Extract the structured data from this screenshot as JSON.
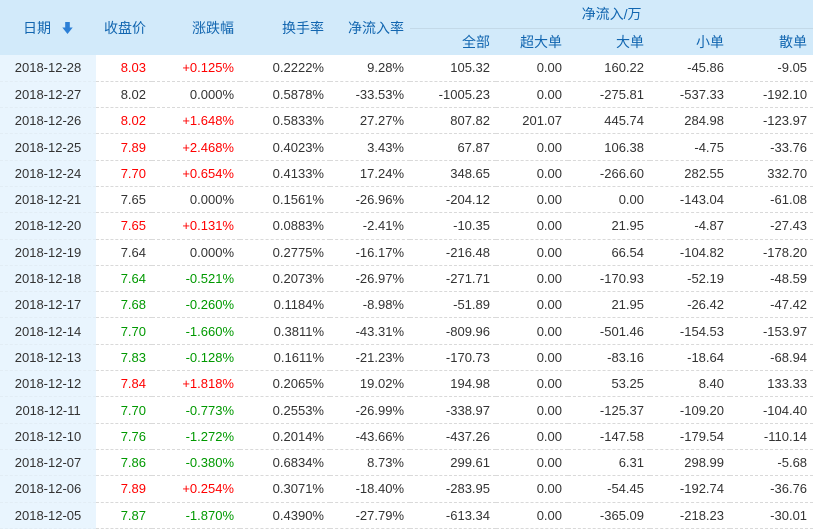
{
  "table": {
    "group_header": "净流入/万",
    "columns": [
      {
        "key": "date",
        "label": "日期"
      },
      {
        "key": "close",
        "label": "收盘价"
      },
      {
        "key": "change",
        "label": "涨跌幅"
      },
      {
        "key": "turnover",
        "label": "换手率"
      },
      {
        "key": "inflow_rate",
        "label": "净流入率"
      },
      {
        "key": "all",
        "label": "全部"
      },
      {
        "key": "super_large",
        "label": "超大单"
      },
      {
        "key": "large",
        "label": "大单"
      },
      {
        "key": "small",
        "label": "小单"
      },
      {
        "key": "scattered",
        "label": "散单"
      }
    ],
    "sort": {
      "column": "日期",
      "direction": "desc",
      "icon": "arrow-down"
    },
    "rows": [
      {
        "date": "2018-12-28",
        "close": "8.03",
        "change": "+0.125%",
        "trend": "up",
        "turnover": "0.2222%",
        "inflow_rate": "9.28%",
        "all": "105.32",
        "super_large": "0.00",
        "large": "160.22",
        "small": "-45.86",
        "scattered": "-9.05"
      },
      {
        "date": "2018-12-27",
        "close": "8.02",
        "change": "0.000%",
        "trend": "flat",
        "turnover": "0.5878%",
        "inflow_rate": "-33.53%",
        "all": "-1005.23",
        "super_large": "0.00",
        "large": "-275.81",
        "small": "-537.33",
        "scattered": "-192.10"
      },
      {
        "date": "2018-12-26",
        "close": "8.02",
        "change": "+1.648%",
        "trend": "up",
        "turnover": "0.5833%",
        "inflow_rate": "27.27%",
        "all": "807.82",
        "super_large": "201.07",
        "large": "445.74",
        "small": "284.98",
        "scattered": "-123.97"
      },
      {
        "date": "2018-12-25",
        "close": "7.89",
        "change": "+2.468%",
        "trend": "up",
        "turnover": "0.4023%",
        "inflow_rate": "3.43%",
        "all": "67.87",
        "super_large": "0.00",
        "large": "106.38",
        "small": "-4.75",
        "scattered": "-33.76"
      },
      {
        "date": "2018-12-24",
        "close": "7.70",
        "change": "+0.654%",
        "trend": "up",
        "turnover": "0.4133%",
        "inflow_rate": "17.24%",
        "all": "348.65",
        "super_large": "0.00",
        "large": "-266.60",
        "small": "282.55",
        "scattered": "332.70"
      },
      {
        "date": "2018-12-21",
        "close": "7.65",
        "change": "0.000%",
        "trend": "flat",
        "turnover": "0.1561%",
        "inflow_rate": "-26.96%",
        "all": "-204.12",
        "super_large": "0.00",
        "large": "0.00",
        "small": "-143.04",
        "scattered": "-61.08"
      },
      {
        "date": "2018-12-20",
        "close": "7.65",
        "change": "+0.131%",
        "trend": "up",
        "turnover": "0.0883%",
        "inflow_rate": "-2.41%",
        "all": "-10.35",
        "super_large": "0.00",
        "large": "21.95",
        "small": "-4.87",
        "scattered": "-27.43"
      },
      {
        "date": "2018-12-19",
        "close": "7.64",
        "change": "0.000%",
        "trend": "flat",
        "turnover": "0.2775%",
        "inflow_rate": "-16.17%",
        "all": "-216.48",
        "super_large": "0.00",
        "large": "66.54",
        "small": "-104.82",
        "scattered": "-178.20"
      },
      {
        "date": "2018-12-18",
        "close": "7.64",
        "change": "-0.521%",
        "trend": "down",
        "turnover": "0.2073%",
        "inflow_rate": "-26.97%",
        "all": "-271.71",
        "super_large": "0.00",
        "large": "-170.93",
        "small": "-52.19",
        "scattered": "-48.59"
      },
      {
        "date": "2018-12-17",
        "close": "7.68",
        "change": "-0.260%",
        "trend": "down",
        "turnover": "0.1184%",
        "inflow_rate": "-8.98%",
        "all": "-51.89",
        "super_large": "0.00",
        "large": "21.95",
        "small": "-26.42",
        "scattered": "-47.42"
      },
      {
        "date": "2018-12-14",
        "close": "7.70",
        "change": "-1.660%",
        "trend": "down",
        "turnover": "0.3811%",
        "inflow_rate": "-43.31%",
        "all": "-809.96",
        "super_large": "0.00",
        "large": "-501.46",
        "small": "-154.53",
        "scattered": "-153.97"
      },
      {
        "date": "2018-12-13",
        "close": "7.83",
        "change": "-0.128%",
        "trend": "down",
        "turnover": "0.1611%",
        "inflow_rate": "-21.23%",
        "all": "-170.73",
        "super_large": "0.00",
        "large": "-83.16",
        "small": "-18.64",
        "scattered": "-68.94"
      },
      {
        "date": "2018-12-12",
        "close": "7.84",
        "change": "+1.818%",
        "trend": "up",
        "turnover": "0.2065%",
        "inflow_rate": "19.02%",
        "all": "194.98",
        "super_large": "0.00",
        "large": "53.25",
        "small": "8.40",
        "scattered": "133.33"
      },
      {
        "date": "2018-12-11",
        "close": "7.70",
        "change": "-0.773%",
        "trend": "down",
        "turnover": "0.2553%",
        "inflow_rate": "-26.99%",
        "all": "-338.97",
        "super_large": "0.00",
        "large": "-125.37",
        "small": "-109.20",
        "scattered": "-104.40"
      },
      {
        "date": "2018-12-10",
        "close": "7.76",
        "change": "-1.272%",
        "trend": "down",
        "turnover": "0.2014%",
        "inflow_rate": "-43.66%",
        "all": "-437.26",
        "super_large": "0.00",
        "large": "-147.58",
        "small": "-179.54",
        "scattered": "-110.14"
      },
      {
        "date": "2018-12-07",
        "close": "7.86",
        "change": "-0.380%",
        "trend": "down",
        "turnover": "0.6834%",
        "inflow_rate": "8.73%",
        "all": "299.61",
        "super_large": "0.00",
        "large": "6.31",
        "small": "298.99",
        "scattered": "-5.68"
      },
      {
        "date": "2018-12-06",
        "close": "7.89",
        "change": "+0.254%",
        "trend": "up",
        "turnover": "0.3071%",
        "inflow_rate": "-18.40%",
        "all": "-283.95",
        "super_large": "0.00",
        "large": "-54.45",
        "small": "-192.74",
        "scattered": "-36.76"
      },
      {
        "date": "2018-12-05",
        "close": "7.87",
        "change": "-1.870%",
        "trend": "down",
        "turnover": "0.4390%",
        "inflow_rate": "-27.79%",
        "all": "-613.34",
        "super_large": "0.00",
        "large": "-365.09",
        "small": "-218.23",
        "scattered": "-30.01"
      }
    ]
  },
  "colors": {
    "up": "#ff0000",
    "down": "#009900",
    "neutral": "#333333",
    "header_bg": "#d2eafa",
    "header_text": "#1266b0",
    "date_column_bg": "#e9f5fe",
    "sort_arrow": "#2b7fd6"
  }
}
